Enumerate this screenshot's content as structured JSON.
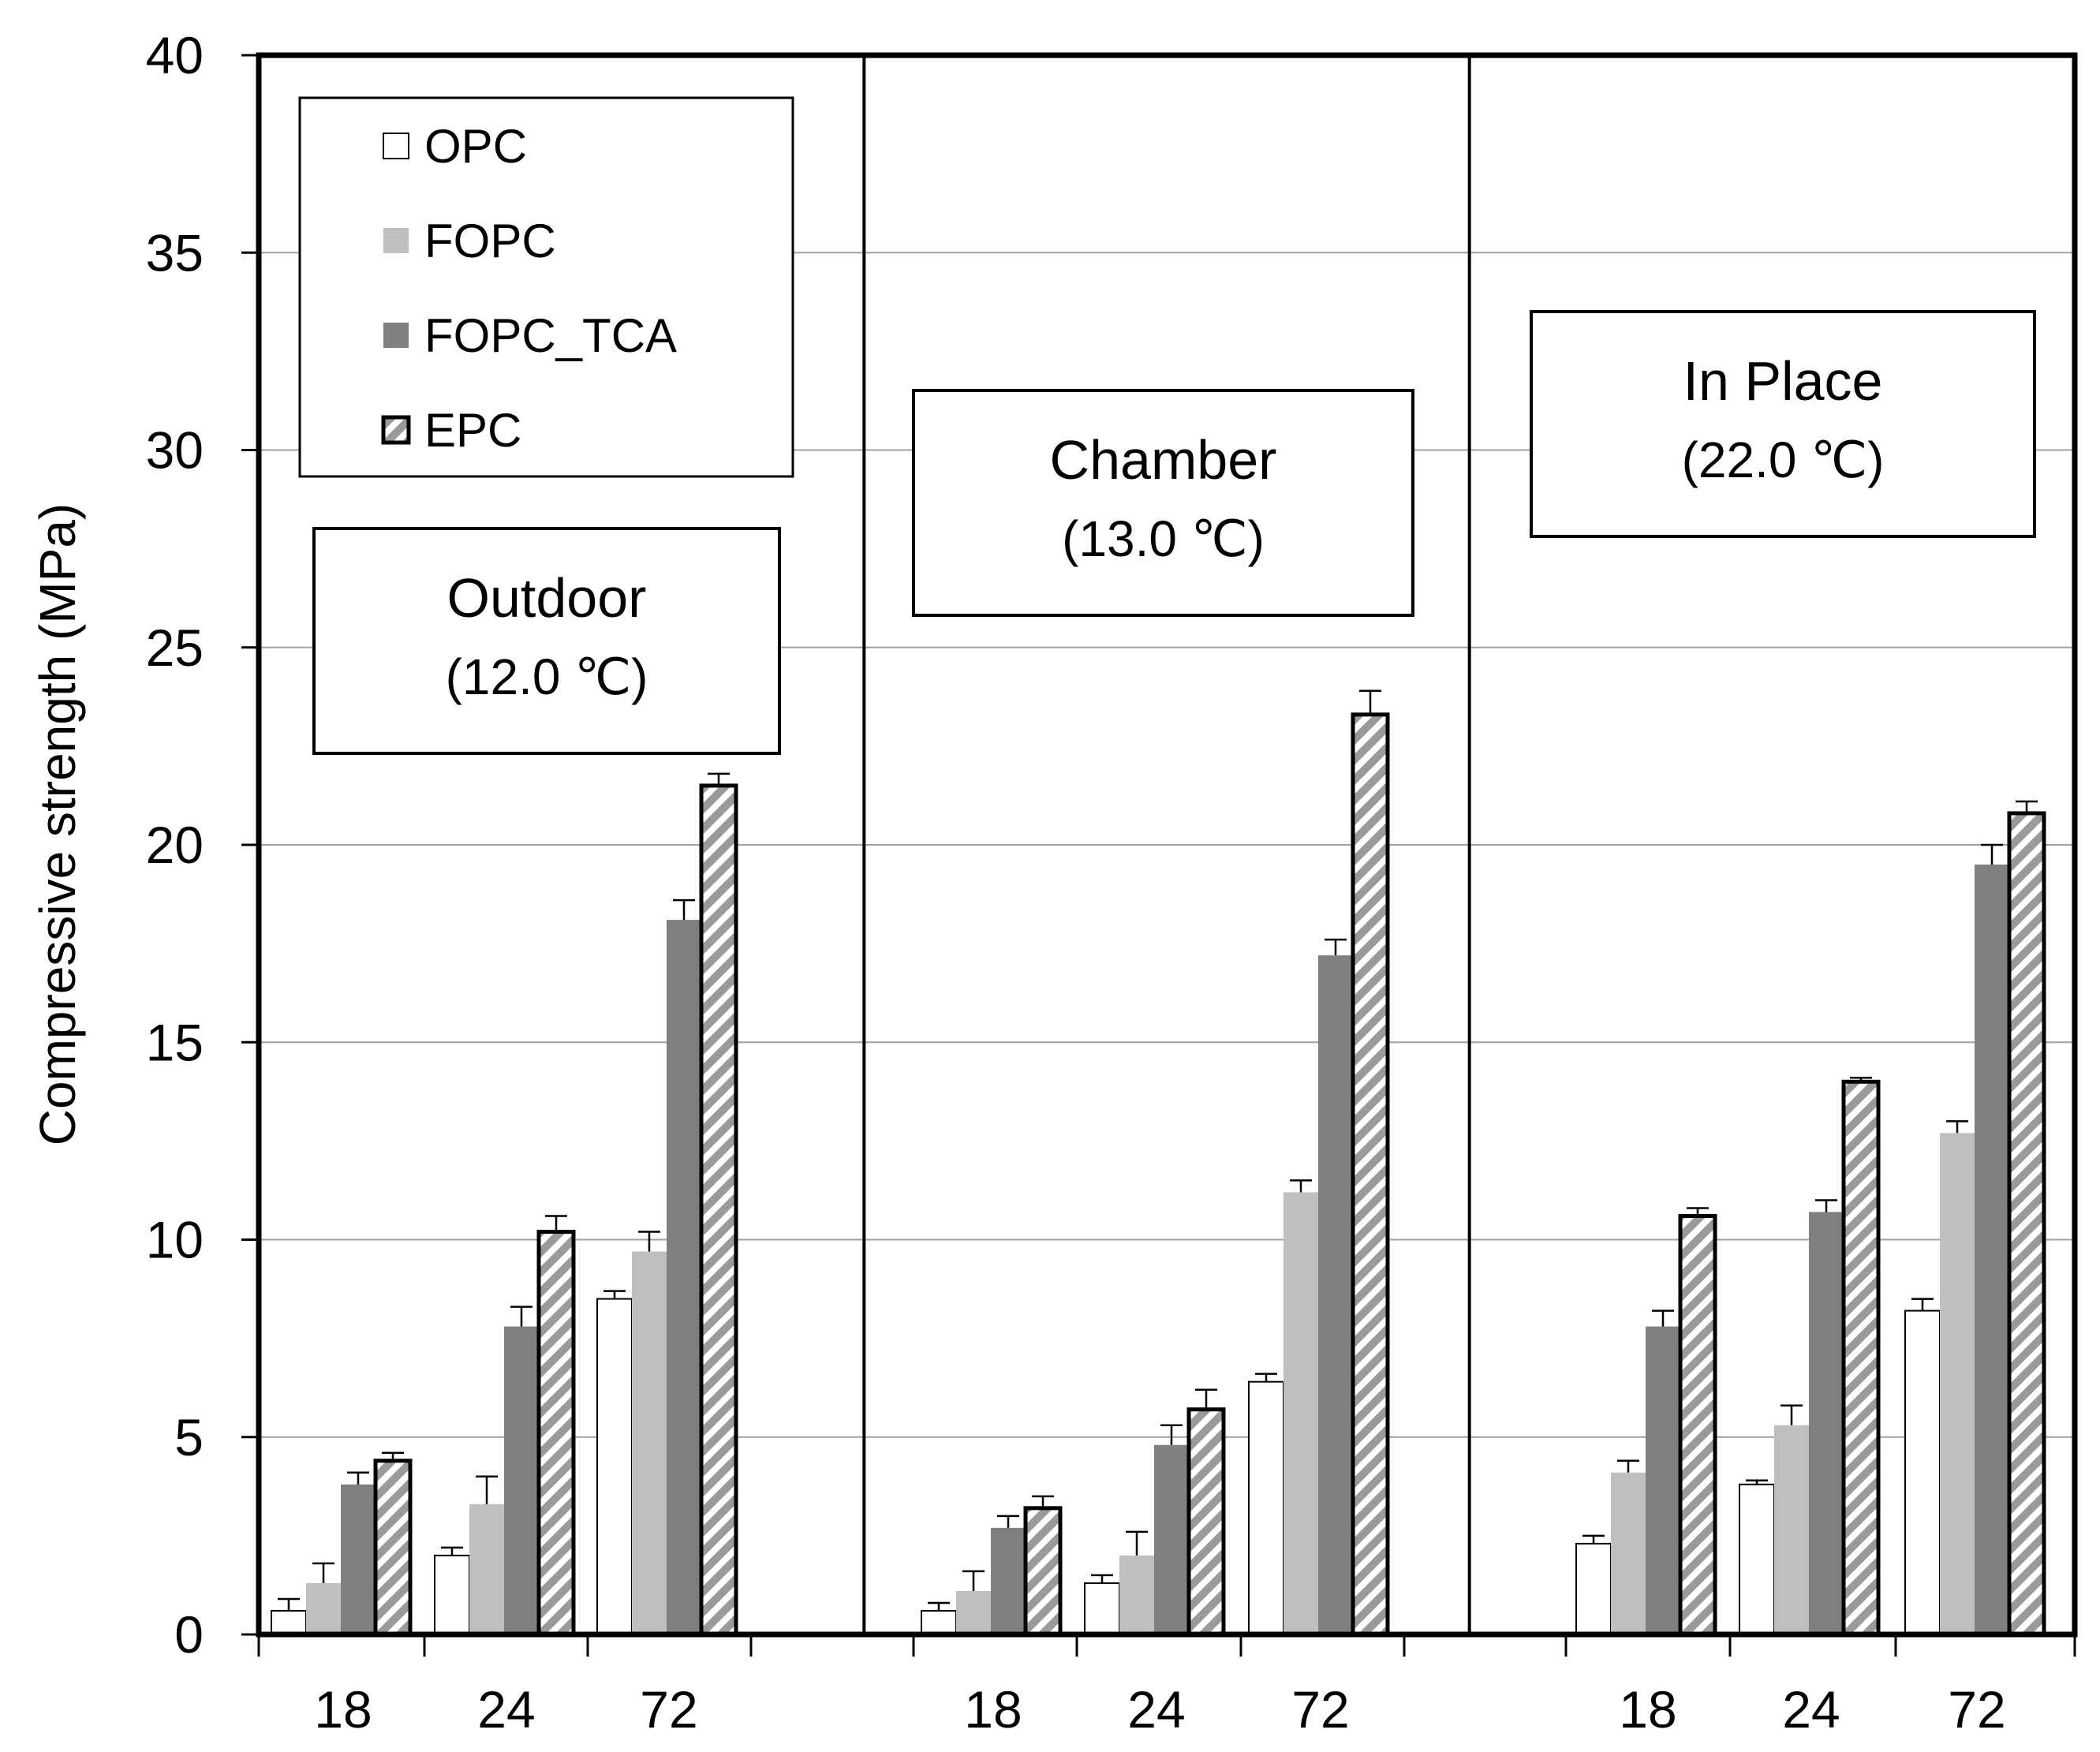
{
  "chart_data": {
    "type": "bar",
    "ylabel": "Compressive strength (MPa)",
    "xlabel": "",
    "ylim": [
      0,
      40
    ],
    "yticks": [
      "0",
      "5",
      "10",
      "15",
      "20",
      "25",
      "30",
      "35",
      "40"
    ],
    "grid": true,
    "legend_position": "top-left",
    "series": [
      {
        "name": "OPC",
        "style": "white",
        "color": "#ffffff"
      },
      {
        "name": "FOPC",
        "style": "light-gray",
        "color": "#bfbfbf"
      },
      {
        "name": "FOPC_TCA",
        "style": "dark-gray",
        "color": "#7f7f7f"
      },
      {
        "name": "EPC",
        "style": "hatched",
        "color": "#a6a6a6"
      }
    ],
    "panels": [
      {
        "title": "Outdoor",
        "subtitle": "(12.0 ℃)",
        "categories": [
          "18",
          "24",
          "72"
        ],
        "values": {
          "OPC": [
            0.6,
            2.0,
            8.5
          ],
          "FOPC": [
            1.3,
            3.3,
            9.7
          ],
          "FOPC_TCA": [
            3.8,
            7.8,
            18.1
          ],
          "EPC": [
            4.4,
            10.2,
            21.5
          ]
        },
        "errors": {
          "OPC": [
            0.3,
            0.2,
            0.2
          ],
          "FOPC": [
            0.5,
            0.7,
            0.5
          ],
          "FOPC_TCA": [
            0.3,
            0.5,
            0.5
          ],
          "EPC": [
            0.2,
            0.4,
            0.3
          ]
        }
      },
      {
        "title": "Chamber",
        "subtitle": "(13.0 ℃)",
        "categories": [
          "18",
          "24",
          "72"
        ],
        "values": {
          "OPC": [
            0.6,
            1.3,
            6.4
          ],
          "FOPC": [
            1.1,
            2.0,
            11.2
          ],
          "FOPC_TCA": [
            2.7,
            4.8,
            17.2
          ],
          "EPC": [
            3.2,
            5.7,
            23.3
          ]
        },
        "errors": {
          "OPC": [
            0.2,
            0.2,
            0.2
          ],
          "FOPC": [
            0.5,
            0.6,
            0.3
          ],
          "FOPC_TCA": [
            0.3,
            0.5,
            0.4
          ],
          "EPC": [
            0.3,
            0.5,
            0.6
          ]
        }
      },
      {
        "title": "In Place",
        "subtitle": "(22.0 ℃)",
        "categories": [
          "18",
          "24",
          "72"
        ],
        "values": {
          "OPC": [
            2.3,
            3.8,
            8.2
          ],
          "FOPC": [
            4.1,
            5.3,
            12.7
          ],
          "FOPC_TCA": [
            7.8,
            10.7,
            19.5
          ],
          "EPC": [
            10.6,
            14.0,
            20.8
          ]
        },
        "errors": {
          "OPC": [
            0.2,
            0.1,
            0.3
          ],
          "FOPC": [
            0.3,
            0.5,
            0.3
          ],
          "FOPC_TCA": [
            0.4,
            0.3,
            0.5
          ],
          "EPC": [
            0.2,
            0.1,
            0.3
          ]
        }
      }
    ]
  }
}
